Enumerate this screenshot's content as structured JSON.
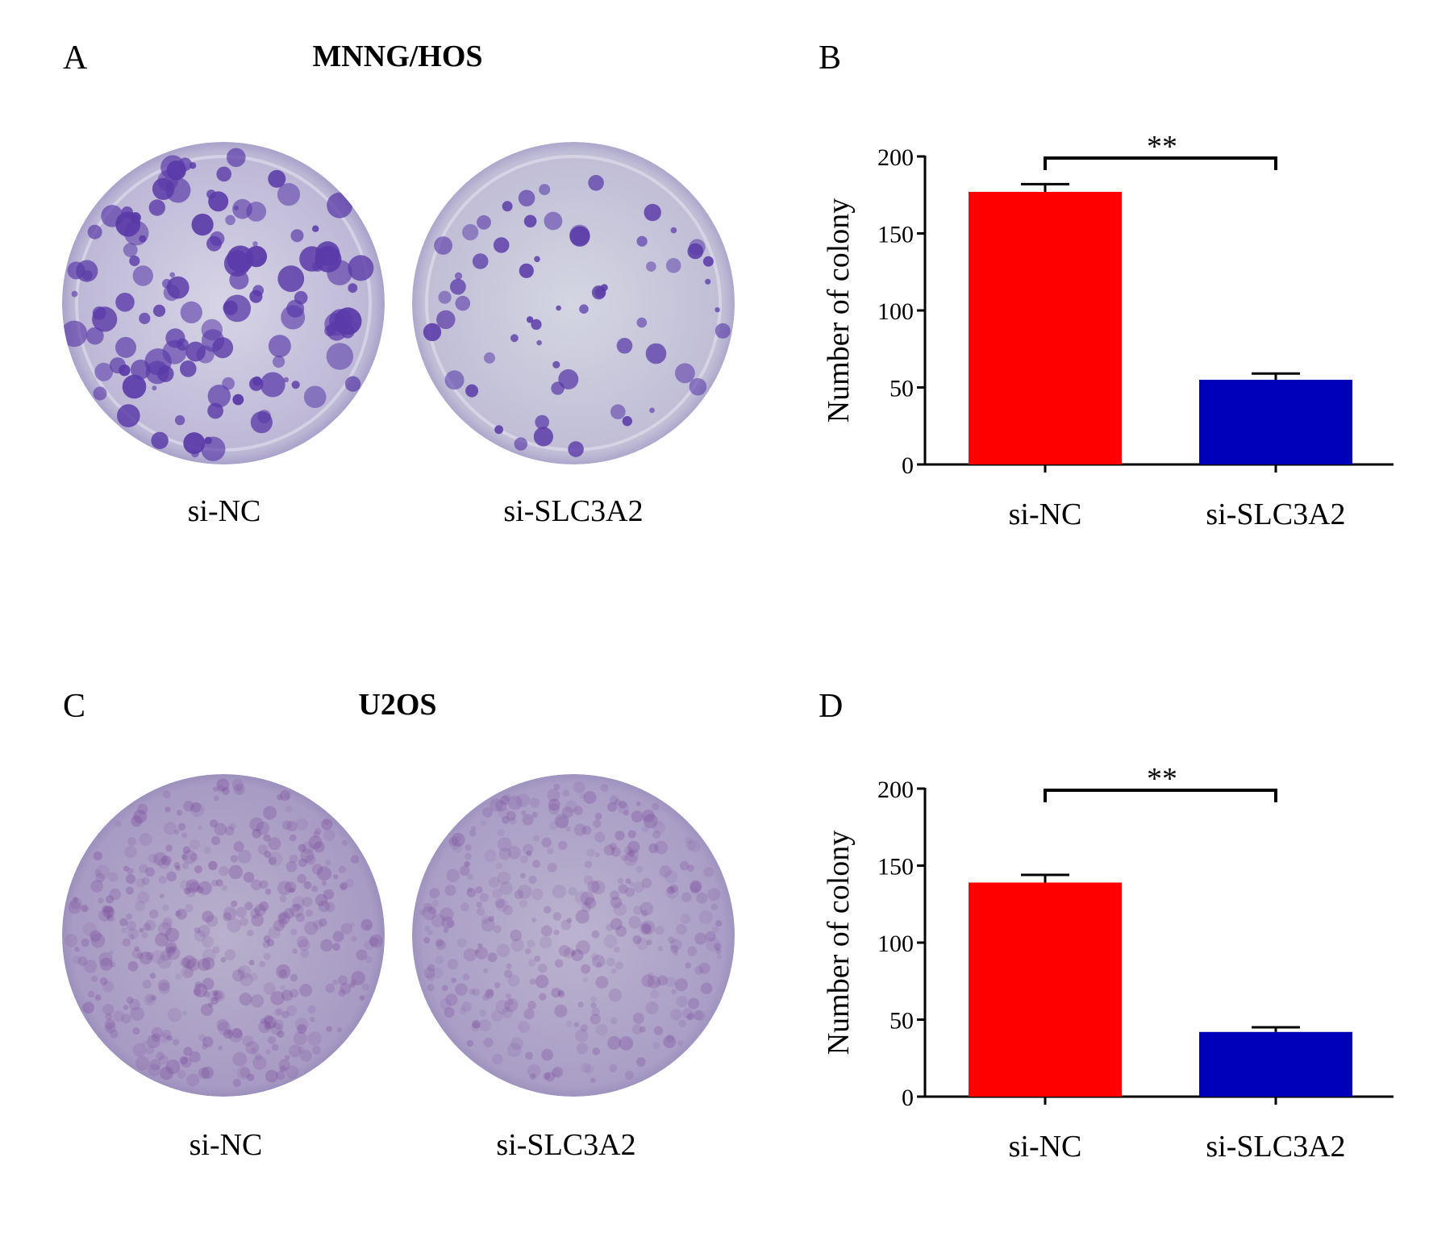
{
  "panels": {
    "A": {
      "letter": "A",
      "title": "MNNG/HOS"
    },
    "B": {
      "letter": "B"
    },
    "C": {
      "letter": "C",
      "title": "U2OS"
    },
    "D": {
      "letter": "D"
    }
  },
  "dish_labels": {
    "top_left": "si-NC",
    "top_right": "si-SLC3A2",
    "bottom_left": "si-NC",
    "bottom_right": "si-SLC3A2"
  },
  "colors": {
    "si_nc": "#ff0000",
    "si_slc3a2": "#0000bb",
    "colony_stain": "#5a3aa8",
    "dish_background_top": "#c9c6dc",
    "dish_background_bottom": "#a89bc4"
  },
  "chart_data": [
    {
      "panel": "B",
      "type": "bar",
      "categories": [
        "si-NC",
        "si-SLC3A2"
      ],
      "values": [
        177,
        55
      ],
      "errors": [
        5,
        4
      ],
      "ylabel": "Number of colony",
      "ylim": [
        0,
        200
      ],
      "yticks": [
        "0",
        "50",
        "100",
        "150",
        "200"
      ],
      "significance": "**"
    },
    {
      "panel": "D",
      "type": "bar",
      "categories": [
        "si-NC",
        "si-SLC3A2"
      ],
      "values": [
        139,
        42
      ],
      "errors": [
        5,
        3
      ],
      "ylabel": "Number of colony",
      "ylim": [
        0,
        200
      ],
      "yticks": [
        "0",
        "50",
        "100",
        "150",
        "200"
      ],
      "significance": "**"
    }
  ]
}
